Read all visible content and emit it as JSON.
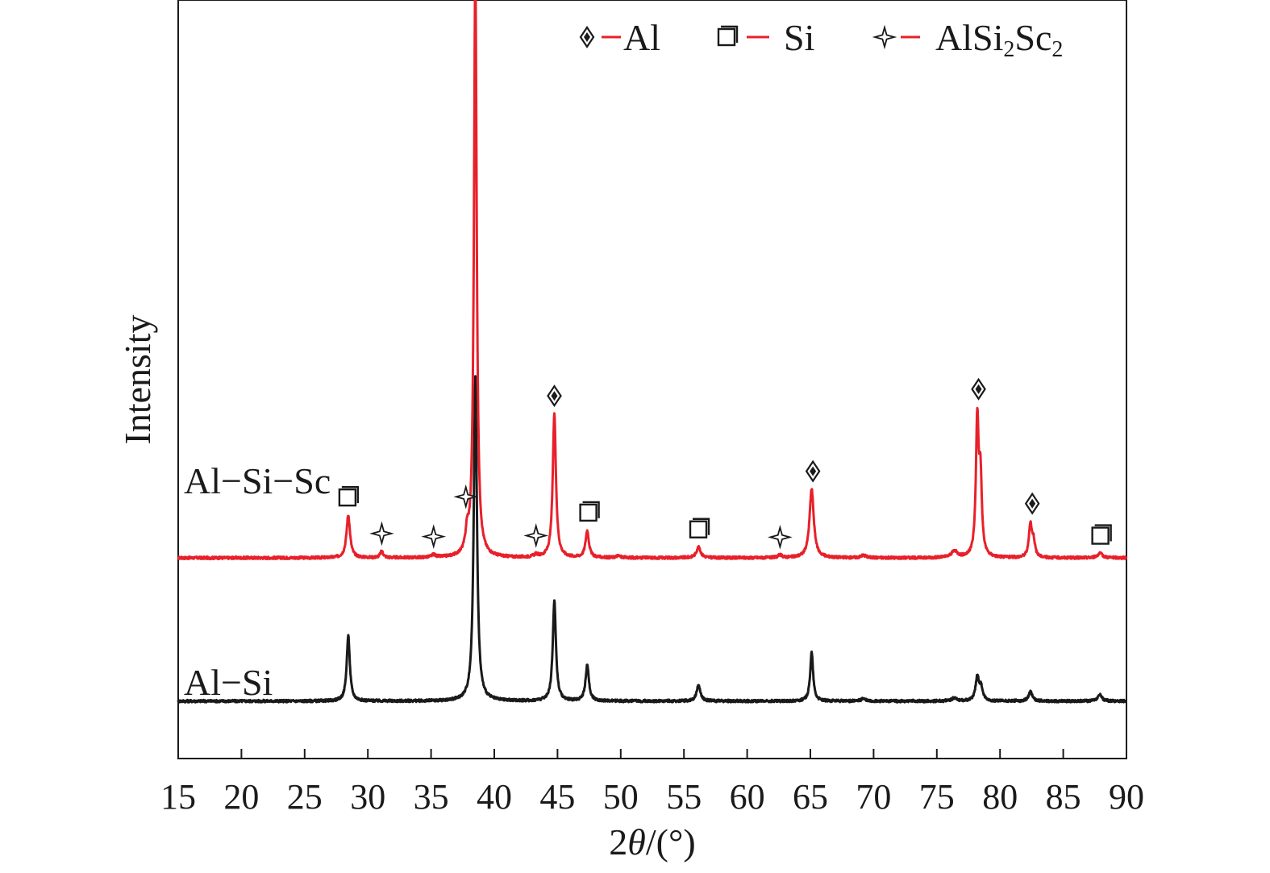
{
  "chart_data": {
    "type": "line",
    "xlabel_prefix": "2",
    "xlabel_theta": "θ",
    "xlabel_suffix": "/(°)",
    "ylabel": "Intensity",
    "xlim": [
      15,
      90
    ],
    "xticks": [
      15,
      20,
      25,
      30,
      35,
      40,
      45,
      50,
      55,
      60,
      65,
      70,
      75,
      80,
      85,
      90
    ],
    "ylim": [
      0,
      1.0
    ],
    "yticks_visible": false,
    "grid": false,
    "legend_position": "top-right",
    "legend": [
      {
        "marker": "diamond",
        "label": "Al",
        "label_main": "Al",
        "sub1": "",
        "mid": "",
        "sub2": ""
      },
      {
        "marker": "square",
        "label": "Si",
        "label_main": "Si",
        "sub1": "",
        "mid": "",
        "sub2": ""
      },
      {
        "marker": "star",
        "label": "AlSi2Sc2",
        "label_main": "AlSi",
        "sub1": "2",
        "mid": "Sc",
        "sub2": "2"
      }
    ],
    "series": [
      {
        "name": "Al−Si−Sc",
        "color": "#e8202a",
        "baseline": 0.237,
        "peaks": [
          {
            "x": 28.45,
            "h": 0.068,
            "w": 0.17
          },
          {
            "x": 31.1,
            "h": 0.01,
            "w": 0.15
          },
          {
            "x": 35.2,
            "h": 0.004,
            "w": 0.2
          },
          {
            "x": 37.85,
            "h": 0.03,
            "w": 0.15
          },
          {
            "x": 38.5,
            "h": 0.94,
            "w": 0.13
          },
          {
            "x": 43.3,
            "h": 0.004,
            "w": 0.2
          },
          {
            "x": 44.75,
            "h": 0.23,
            "w": 0.15
          },
          {
            "x": 47.35,
            "h": 0.043,
            "w": 0.16
          },
          {
            "x": 49.8,
            "h": 0.003,
            "w": 0.2
          },
          {
            "x": 56.15,
            "h": 0.017,
            "w": 0.2
          },
          {
            "x": 62.6,
            "h": 0.004,
            "w": 0.2
          },
          {
            "x": 65.1,
            "h": 0.11,
            "w": 0.2
          },
          {
            "x": 69.2,
            "h": 0.004,
            "w": 0.25
          },
          {
            "x": 76.4,
            "h": 0.01,
            "w": 0.3
          },
          {
            "x": 78.2,
            "h": 0.215,
            "w": 0.13
          },
          {
            "x": 78.45,
            "h": 0.12,
            "w": 0.13
          },
          {
            "x": 82.4,
            "h": 0.052,
            "w": 0.14
          },
          {
            "x": 82.65,
            "h": 0.025,
            "w": 0.14
          },
          {
            "x": 87.9,
            "h": 0.007,
            "w": 0.25
          }
        ]
      },
      {
        "name": "Al−Si",
        "color": "#1a1a1a",
        "baseline": 0.008,
        "peaks": [
          {
            "x": 28.45,
            "h": 0.104,
            "w": 0.15
          },
          {
            "x": 38.5,
            "h": 0.52,
            "w": 0.15
          },
          {
            "x": 44.75,
            "h": 0.16,
            "w": 0.15
          },
          {
            "x": 47.35,
            "h": 0.057,
            "w": 0.16
          },
          {
            "x": 56.15,
            "h": 0.025,
            "w": 0.18
          },
          {
            "x": 65.1,
            "h": 0.078,
            "w": 0.14
          },
          {
            "x": 69.2,
            "h": 0.004,
            "w": 0.2
          },
          {
            "x": 76.4,
            "h": 0.005,
            "w": 0.25
          },
          {
            "x": 78.2,
            "h": 0.038,
            "w": 0.16
          },
          {
            "x": 78.5,
            "h": 0.02,
            "w": 0.16
          },
          {
            "x": 82.4,
            "h": 0.015,
            "w": 0.18
          },
          {
            "x": 87.9,
            "h": 0.01,
            "w": 0.2
          }
        ]
      }
    ],
    "annotations": [
      {
        "marker": "square",
        "x": 28.45,
        "series": "Al−Si−Sc"
      },
      {
        "marker": "star",
        "x": 31.1,
        "series": "Al−Si−Sc"
      },
      {
        "marker": "star",
        "x": 35.2,
        "series": "Al−Si−Sc"
      },
      {
        "marker": "star",
        "x": 37.75,
        "series": "Al−Si−Sc"
      },
      {
        "marker": "diamond",
        "x": 38.5,
        "series": "Al−Si−Sc"
      },
      {
        "marker": "star",
        "x": 43.3,
        "series": "Al−Si−Sc"
      },
      {
        "marker": "diamond",
        "x": 44.75,
        "series": "Al−Si−Sc"
      },
      {
        "marker": "square",
        "x": 47.5,
        "series": "Al−Si−Sc"
      },
      {
        "marker": "square",
        "x": 56.2,
        "series": "Al−Si−Sc"
      },
      {
        "marker": "star",
        "x": 62.6,
        "series": "Al−Si−Sc"
      },
      {
        "marker": "diamond",
        "x": 65.2,
        "series": "Al−Si−Sc"
      },
      {
        "marker": "diamond",
        "x": 78.3,
        "series": "Al−Si−Sc"
      },
      {
        "marker": "diamond",
        "x": 82.55,
        "series": "Al−Si−Sc"
      },
      {
        "marker": "square",
        "x": 88.0,
        "series": "Al−Si−Sc"
      }
    ]
  }
}
